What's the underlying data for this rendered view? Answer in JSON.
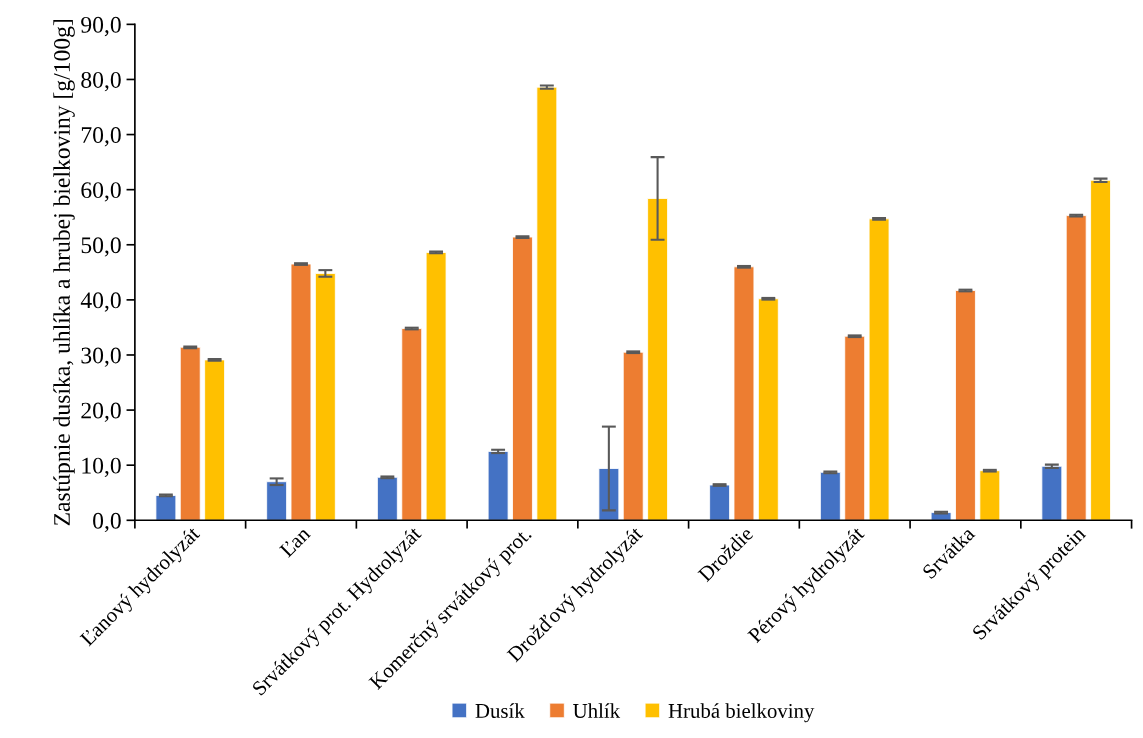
{
  "chart_data": {
    "type": "bar",
    "ylabel": "Zastúpnie dusíka, uhlíka a hrubej bielkoviny [g/100g]",
    "categories": [
      "Ľanový hydrolyzát",
      "Ľan",
      "Srvátkový prot. Hydrolyzát",
      "Komerčný srvátkový prot.",
      "Drožďový hydrolyzát",
      "Droždie",
      "Pérový hydrolyzát",
      "Srvátka",
      "Srvátkový protein"
    ],
    "series": [
      {
        "name": "Dusík",
        "color": "#4472c4",
        "values": [
          4.5,
          7.0,
          7.8,
          12.5,
          9.4,
          6.4,
          8.7,
          1.4,
          9.8
        ],
        "errors": [
          0.15,
          0.6,
          0.15,
          0.3,
          7.6,
          0.15,
          0.15,
          0.15,
          0.3
        ]
      },
      {
        "name": "Uhlík",
        "color": "#ed7d31",
        "values": [
          31.4,
          46.5,
          34.8,
          51.4,
          30.5,
          46.0,
          33.4,
          41.7,
          55.3
        ],
        "errors": [
          0.15,
          0.15,
          0.15,
          0.15,
          0.15,
          0.15,
          0.15,
          0.15,
          0.15
        ]
      },
      {
        "name": "Hrubá bielkoviny",
        "color": "#ffc000",
        "values": [
          29.1,
          44.8,
          48.6,
          78.6,
          58.4,
          40.2,
          54.7,
          9.0,
          61.7
        ],
        "errors": [
          0.15,
          0.6,
          0.15,
          0.3,
          7.5,
          0.15,
          0.15,
          0.15,
          0.3
        ]
      }
    ],
    "ylim": [
      0,
      90
    ],
    "yticks": [
      {
        "value": 0,
        "label": "0,0"
      },
      {
        "value": 10,
        "label": "10,0"
      },
      {
        "value": 20,
        "label": "20,0"
      },
      {
        "value": 30,
        "label": "30,0"
      },
      {
        "value": 40,
        "label": "40,0"
      },
      {
        "value": 50,
        "label": "50,0"
      },
      {
        "value": 60,
        "label": "60,0"
      },
      {
        "value": 70,
        "label": "70,0"
      },
      {
        "value": 80,
        "label": "80,0"
      },
      {
        "value": 90,
        "label": "90,0"
      }
    ],
    "grid": false,
    "legend": "bottom"
  }
}
